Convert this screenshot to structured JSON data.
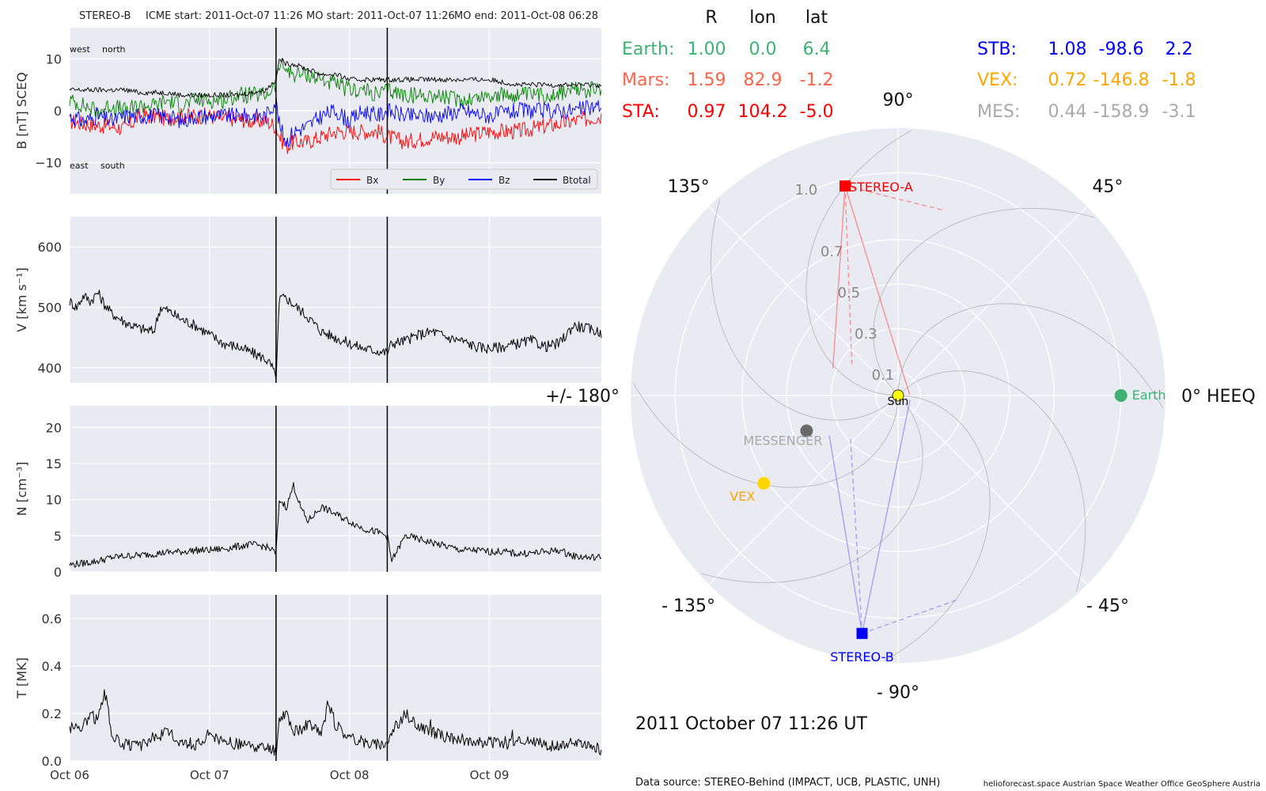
{
  "header": {
    "spacecraft": "STEREO-B",
    "icme_start": "ICME start: 2011-Oct-07 11:26",
    "mo_start": "MO start: 2011-Oct-07 11:26",
    "mo_end": "MO end: 2011-Oct-08 06:28"
  },
  "colors": {
    "bx": "#ff0000",
    "by": "#008000",
    "bz": "#0000ff",
    "btotal": "#000000",
    "earth": "#3cb371",
    "mars": "#ff6347",
    "sta": "#ff0000",
    "stb": "#0000ff",
    "vex": "#ffa500",
    "mes": "#a9a9a9",
    "panel_bg": "#eaeaf2"
  },
  "chart_data": [
    {
      "type": "line",
      "id": "b",
      "ylabel": "B [nT] SCEQ",
      "ylim": [
        -16,
        16
      ],
      "yticks": [
        10,
        0,
        -10
      ],
      "ytick_labels": [
        "10",
        "0",
        "−10"
      ],
      "annotations": {
        "top_left": "west",
        "top_right": "north",
        "bottom_left": "east",
        "bottom_right": "south"
      },
      "x_range_days": [
        0,
        3.8
      ],
      "shock_lines_days": [
        1.475,
        2.27
      ],
      "series": [
        {
          "name": "Bx",
          "color": "#ff0000",
          "x": [
            0,
            0.1,
            0.2,
            0.3,
            0.4,
            0.5,
            0.6,
            0.7,
            0.8,
            0.9,
            1,
            1.1,
            1.2,
            1.3,
            1.4,
            1.475,
            1.5,
            1.55,
            1.6,
            1.7,
            1.8,
            1.9,
            2,
            2.1,
            2.2,
            2.27,
            2.4,
            2.6,
            2.8,
            3,
            3.2,
            3.4,
            3.6,
            3.8
          ],
          "y": [
            -2,
            -2.5,
            -2.8,
            -3,
            -3.5,
            -1,
            -1,
            -1.5,
            -1,
            -1,
            -1,
            -1.5,
            -1.5,
            -2,
            -2,
            -3,
            -5,
            -7,
            -6,
            -6,
            -5,
            -4,
            -4,
            -4,
            -4,
            -5,
            -6,
            -5,
            -5,
            -4,
            -4,
            -3,
            -2,
            -1
          ]
        },
        {
          "name": "By",
          "color": "#008000",
          "x": [
            0,
            0.1,
            0.2,
            0.3,
            0.4,
            0.5,
            0.6,
            0.7,
            0.8,
            0.9,
            1,
            1.1,
            1.2,
            1.3,
            1.4,
            1.475,
            1.5,
            1.55,
            1.6,
            1.7,
            1.8,
            1.9,
            2,
            2.1,
            2.2,
            2.27,
            2.4,
            2.6,
            2.8,
            3,
            3.2,
            3.4,
            3.6,
            3.8
          ],
          "y": [
            2,
            1,
            0,
            1,
            0,
            1,
            1,
            2,
            1,
            2,
            2,
            2,
            3,
            3,
            3,
            5,
            9,
            8,
            7,
            7,
            6,
            5,
            4,
            4,
            3,
            4,
            3,
            3,
            2,
            3,
            3,
            3,
            4,
            4
          ]
        },
        {
          "name": "Bz",
          "color": "#0000ff",
          "x": [
            0,
            0.1,
            0.2,
            0.3,
            0.4,
            0.5,
            0.6,
            0.7,
            0.8,
            0.9,
            1,
            1.1,
            1.2,
            1.3,
            1.4,
            1.475,
            1.5,
            1.55,
            1.6,
            1.7,
            1.8,
            1.9,
            2,
            2.1,
            2.2,
            2.27,
            2.4,
            2.6,
            2.8,
            3,
            3.2,
            3.4,
            3.6,
            3.8
          ],
          "y": [
            -1,
            -2,
            -1,
            -2,
            -1,
            -1,
            -1,
            -1,
            -2,
            -1,
            -1,
            -1,
            -1,
            -1,
            -1,
            2,
            -3,
            -6,
            -4,
            -3,
            -1,
            0,
            -2,
            0,
            -1,
            0,
            -1,
            -1,
            0,
            -1,
            0,
            0,
            0,
            1
          ]
        },
        {
          "name": "Btotal",
          "color": "#000000",
          "x": [
            0,
            0.1,
            0.2,
            0.3,
            0.4,
            0.5,
            0.6,
            0.7,
            0.8,
            0.9,
            1,
            1.1,
            1.2,
            1.3,
            1.4,
            1.475,
            1.5,
            1.55,
            1.6,
            1.7,
            1.8,
            1.9,
            2,
            2.1,
            2.2,
            2.27,
            2.4,
            2.6,
            2.8,
            3,
            3.2,
            3.4,
            3.6,
            3.8
          ],
          "y": [
            4,
            4,
            4,
            4,
            4,
            3.5,
            3.5,
            3.5,
            3,
            3,
            3,
            3,
            3,
            3.5,
            4,
            6,
            10,
            9,
            9,
            8,
            7,
            7,
            6,
            6,
            6,
            6,
            6,
            6,
            6,
            6,
            5,
            5,
            5,
            5
          ]
        }
      ],
      "legend": {
        "location": "lower-right",
        "entries": [
          "Bx",
          "By",
          "Bz",
          "Btotal"
        ]
      }
    },
    {
      "type": "line",
      "id": "v",
      "ylabel": "V [km s⁻¹]",
      "ylim": [
        375,
        650
      ],
      "yticks": [
        600,
        500,
        400
      ],
      "ytick_labels": [
        "600",
        "500",
        "400"
      ],
      "x_range_days": [
        0,
        3.8
      ],
      "shock_lines_days": [
        1.475,
        2.27
      ],
      "series": [
        {
          "name": "V",
          "color": "#000000",
          "x": [
            0,
            0.05,
            0.1,
            0.15,
            0.2,
            0.25,
            0.3,
            0.4,
            0.5,
            0.6,
            0.65,
            0.7,
            0.8,
            0.9,
            1,
            1.1,
            1.2,
            1.3,
            1.4,
            1.45,
            1.475,
            1.5,
            1.55,
            1.6,
            1.7,
            1.8,
            1.9,
            2,
            2.1,
            2.2,
            2.27,
            2.3,
            2.4,
            2.5,
            2.6,
            2.7,
            2.8,
            2.9,
            3,
            3.1,
            3.2,
            3.3,
            3.4,
            3.5,
            3.6,
            3.7,
            3.8
          ],
          "y": [
            510,
            500,
            520,
            510,
            525,
            505,
            490,
            475,
            465,
            460,
            500,
            495,
            480,
            470,
            455,
            440,
            435,
            425,
            415,
            400,
            380,
            515,
            515,
            505,
            485,
            460,
            450,
            440,
            432,
            428,
            425,
            440,
            445,
            455,
            460,
            450,
            445,
            435,
            432,
            435,
            440,
            445,
            435,
            440,
            470,
            465,
            458
          ]
        }
      ]
    },
    {
      "type": "line",
      "id": "n",
      "ylabel": "N [cm⁻³]",
      "ylim": [
        0,
        23
      ],
      "yticks": [
        20,
        15,
        10,
        5,
        0
      ],
      "ytick_labels": [
        "20",
        "15",
        "10",
        "5",
        "0"
      ],
      "x_range_days": [
        0,
        3.8
      ],
      "shock_lines_days": [
        1.475,
        2.27
      ],
      "series": [
        {
          "name": "N",
          "color": "#000000",
          "x": [
            0,
            0.1,
            0.2,
            0.3,
            0.4,
            0.5,
            0.6,
            0.7,
            0.8,
            0.9,
            1,
            1.1,
            1.2,
            1.3,
            1.4,
            1.45,
            1.475,
            1.5,
            1.55,
            1.6,
            1.65,
            1.7,
            1.8,
            1.9,
            2,
            2.1,
            2.2,
            2.27,
            2.3,
            2.4,
            2.5,
            2.6,
            2.7,
            2.8,
            2.9,
            3,
            3.1,
            3.2,
            3.3,
            3.4,
            3.5,
            3.6,
            3.7,
            3.8
          ],
          "y": [
            1,
            1.2,
            1.5,
            2,
            2.2,
            2.3,
            2.5,
            2.7,
            2.8,
            3,
            3,
            3.2,
            3.5,
            3.8,
            3.5,
            3,
            2.5,
            10,
            9,
            12,
            9,
            7,
            9,
            8,
            7,
            6,
            5.5,
            5,
            1.5,
            5,
            4.5,
            4,
            3.5,
            3,
            3,
            2.8,
            2.8,
            2.5,
            2.6,
            2.8,
            3,
            2.2,
            2,
            2
          ]
        }
      ]
    },
    {
      "type": "line",
      "id": "t",
      "ylabel": "T [MK]",
      "ylim": [
        0,
        0.7
      ],
      "yticks": [
        0.6,
        0.4,
        0.2,
        0.0
      ],
      "ytick_labels": [
        "0.6",
        "0.4",
        "0.2",
        "0.0"
      ],
      "xtick_days": [
        0,
        1,
        2,
        3
      ],
      "xtick_labels": [
        "Oct 06",
        "Oct 07",
        "Oct 08",
        "Oct 09"
      ],
      "x_range_days": [
        0,
        3.8
      ],
      "shock_lines_days": [
        1.475,
        2.27
      ],
      "series": [
        {
          "name": "T",
          "color": "#000000",
          "x": [
            0,
            0.1,
            0.15,
            0.2,
            0.25,
            0.3,
            0.35,
            0.4,
            0.5,
            0.6,
            0.7,
            0.8,
            0.9,
            1,
            1.1,
            1.2,
            1.3,
            1.4,
            1.45,
            1.475,
            1.5,
            1.55,
            1.6,
            1.7,
            1.8,
            1.85,
            1.9,
            2,
            2.1,
            2.2,
            2.27,
            2.3,
            2.4,
            2.5,
            2.6,
            2.7,
            2.8,
            2.9,
            3,
            3.1,
            3.2,
            3.3,
            3.4,
            3.5,
            3.6,
            3.7,
            3.8
          ],
          "y": [
            0.14,
            0.15,
            0.2,
            0.17,
            0.3,
            0.12,
            0.08,
            0.07,
            0.06,
            0.1,
            0.12,
            0.08,
            0.07,
            0.1,
            0.08,
            0.07,
            0.06,
            0.05,
            0.05,
            0.03,
            0.18,
            0.2,
            0.12,
            0.15,
            0.12,
            0.25,
            0.15,
            0.1,
            0.08,
            0.07,
            0.08,
            0.12,
            0.2,
            0.14,
            0.12,
            0.1,
            0.09,
            0.08,
            0.08,
            0.07,
            0.08,
            0.08,
            0.07,
            0.06,
            0.08,
            0.06,
            0.05
          ]
        }
      ]
    },
    {
      "type": "scatter",
      "id": "polar",
      "projection": "polar",
      "r_grid": [
        0.1,
        0.3,
        0.5,
        0.7,
        1.0
      ],
      "r_grid_labels": [
        "0.1",
        "0.3",
        "0.5",
        "0.7",
        "1.0"
      ],
      "r_max": 1.2,
      "angle_labels": [
        {
          "deg": 90,
          "text": "90°"
        },
        {
          "deg": 45,
          "text": "45°"
        },
        {
          "deg": 0,
          "text": "0° HEEQ"
        },
        {
          "deg": -45,
          "text": "- 45°"
        },
        {
          "deg": -90,
          "text": "- 90°"
        },
        {
          "deg": -135,
          "text": "- 135°"
        },
        {
          "deg": 180,
          "text": "+/- 180°"
        },
        {
          "deg": 135,
          "text": "135°"
        }
      ],
      "bodies": [
        {
          "name": "Sun",
          "label": "Sun",
          "r": 0.0,
          "lon": 0.0,
          "color": "#ffff00",
          "marker": "circle"
        },
        {
          "name": "Earth",
          "label": "Earth",
          "r": 1.0,
          "lon": 0.0,
          "color": "#3cb371",
          "marker": "circle"
        },
        {
          "name": "MESSENGER",
          "label": "MESSENGER",
          "r": 0.44,
          "lon": -158.9,
          "color": "#696969",
          "marker": "circle"
        },
        {
          "name": "VEX",
          "label": "VEX",
          "r": 0.72,
          "lon": -146.8,
          "color": "#ffd700",
          "marker": "circle"
        },
        {
          "name": "STEREO-A",
          "label": "STEREO-A",
          "r": 0.97,
          "lon": 104.2,
          "color": "#ff0000",
          "marker": "square"
        },
        {
          "name": "STEREO-B",
          "label": "STEREO-B",
          "r": 1.08,
          "lon": -98.6,
          "color": "#0000ff",
          "marker": "square"
        }
      ]
    }
  ],
  "position_table": {
    "headers": [
      "R",
      "lon",
      "lat"
    ],
    "rows_left": [
      {
        "name": "Earth:",
        "r": "1.00",
        "lon": "0.0",
        "lat": "6.4",
        "color": "#3cb371"
      },
      {
        "name": "Mars:",
        "r": "1.59",
        "lon": "82.9",
        "lat": "-1.2",
        "color": "#ff6347"
      },
      {
        "name": "STA:",
        "r": "0.97",
        "lon": "104.2",
        "lat": "-5.0",
        "color": "#ff0000"
      }
    ],
    "rows_right": [
      {
        "name": "STB:",
        "r": "1.08",
        "lon": "-98.6",
        "lat": "2.2",
        "color": "#0000ff"
      },
      {
        "name": "VEX:",
        "r": "0.72",
        "lon": "-146.8",
        "lat": "-1.8",
        "color": "#ffa500"
      },
      {
        "name": "MES:",
        "r": "0.44",
        "lon": "-158.9",
        "lat": "-3.1",
        "color": "#a9a9a9"
      }
    ]
  },
  "footer": {
    "date": "2011 October 07  11:26 UT",
    "data_source": "Data source: STEREO-Behind (IMPACT, UCB, PLASTIC, UNH)",
    "credits": "helioforecast.space   Austrian Space Weather Office   GeoSphere Austria"
  }
}
